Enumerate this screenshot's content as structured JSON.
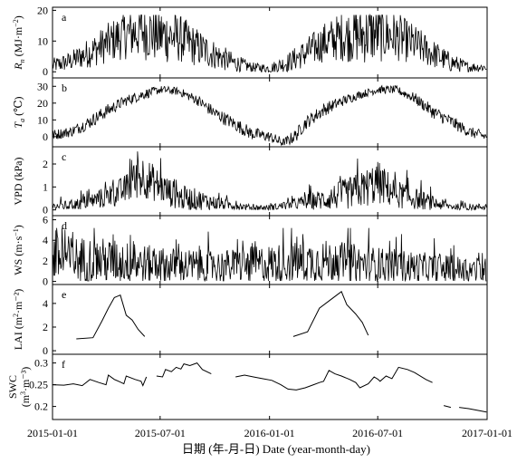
{
  "figure": {
    "xlabel": "日期 (年-月-日) Date (year-month-day)",
    "x_ticks": [
      "2015-01-01",
      "2015-07-01",
      "2016-01-01",
      "2016-07-01",
      "2017-01-01"
    ],
    "line_color": "#000000"
  },
  "chart_data": [
    {
      "type": "line",
      "panel_letter": "a",
      "ylabel": "Rn (MJ·m⁻²)",
      "ylabel_main": "R",
      "ylabel_sub": "n",
      "ylabel_rest": " (MJ·m",
      "ylabel_sup": "−2",
      "ylabel_end": ")",
      "ylim": [
        -2,
        21
      ],
      "yticks": [
        0,
        10,
        20
      ],
      "xlim": [
        "2015-01-01",
        "2017-01-01"
      ],
      "x": [
        "2015-01-01",
        "2015-02-01",
        "2015-03-01",
        "2015-04-01",
        "2015-05-01",
        "2015-06-01",
        "2015-07-01",
        "2015-08-01",
        "2015-09-01",
        "2015-10-01",
        "2015-11-01",
        "2015-12-01",
        "2016-01-01",
        "2016-02-01",
        "2016-03-01",
        "2016-04-01",
        "2016-05-01",
        "2016-06-01",
        "2016-07-01",
        "2016-08-01",
        "2016-09-01",
        "2016-10-01",
        "2016-11-01",
        "2016-12-01",
        "2016-12-31"
      ],
      "y": [
        2,
        3.5,
        6,
        9,
        12,
        13.5,
        12,
        11,
        8,
        5.5,
        3,
        1.5,
        1,
        3,
        6,
        9.5,
        11.5,
        12,
        12.5,
        11.5,
        9,
        6,
        3,
        1.5,
        1.5
      ],
      "amplitude": [
        1.5,
        2,
        3,
        4,
        5,
        6,
        6,
        5,
        4,
        3,
        2,
        1,
        1,
        2,
        3,
        4,
        5,
        6,
        6,
        5,
        4,
        3,
        2,
        1,
        1
      ],
      "clip": [
        0,
        18.5
      ]
    },
    {
      "type": "line",
      "panel_letter": "b",
      "ylabel": "Ta (℃)",
      "ylabel_main": "T",
      "ylabel_sub": "a",
      "ylabel_rest": " (℃)",
      "ylabel_sup": "",
      "ylabel_end": "",
      "ylim": [
        -6,
        35
      ],
      "yticks": [
        0,
        10,
        20,
        30
      ],
      "xlim": [
        "2015-01-01",
        "2017-01-01"
      ],
      "x": [
        "2015-01-01",
        "2015-02-01",
        "2015-03-01",
        "2015-04-01",
        "2015-05-01",
        "2015-06-01",
        "2015-07-01",
        "2015-08-01",
        "2015-09-01",
        "2015-10-01",
        "2015-11-01",
        "2015-12-01",
        "2016-01-01",
        "2016-01-25",
        "2016-02-15",
        "2016-03-01",
        "2016-04-01",
        "2016-05-01",
        "2016-06-01",
        "2016-07-01",
        "2016-08-01",
        "2016-09-01",
        "2016-10-01",
        "2016-11-01",
        "2016-12-01",
        "2016-12-31"
      ],
      "y": [
        1,
        3,
        8,
        15,
        21,
        25,
        28,
        27,
        22,
        14,
        8,
        2,
        0,
        -4,
        1,
        8,
        16,
        21,
        25,
        28,
        28,
        23,
        15,
        9,
        3,
        0
      ],
      "amplitude": [
        2,
        2,
        2.5,
        2.5,
        2,
        2,
        1.5,
        1.5,
        2,
        2.5,
        2.5,
        2.5,
        2,
        2,
        2.5,
        2.5,
        2.5,
        2,
        1.5,
        1.5,
        1.5,
        2,
        2.5,
        2.5,
        2,
        2
      ],
      "clip": [
        -5,
        32
      ]
    },
    {
      "type": "line",
      "panel_letter": "c",
      "ylabel": "VPD (kPa)",
      "ylabel_main": "VPD (kPa)",
      "ylabel_sub": "",
      "ylabel_rest": "",
      "ylabel_sup": "",
      "ylabel_end": "",
      "ylim": [
        -0.25,
        2.75
      ],
      "yticks": [
        0,
        1,
        2
      ],
      "xlim": [
        "2015-01-01",
        "2017-01-01"
      ],
      "x": [
        "2015-01-01",
        "2015-02-01",
        "2015-03-01",
        "2015-04-01",
        "2015-05-01",
        "2015-06-01",
        "2015-07-01",
        "2015-08-01",
        "2015-09-01",
        "2015-10-01",
        "2015-11-01",
        "2015-12-01",
        "2016-01-01",
        "2016-02-01",
        "2016-03-01",
        "2016-04-01",
        "2016-05-01",
        "2016-06-01",
        "2016-07-01",
        "2016-08-01",
        "2016-09-01",
        "2016-10-01",
        "2016-11-01",
        "2016-12-01",
        "2016-12-31"
      ],
      "y": [
        0.15,
        0.2,
        0.35,
        0.55,
        0.85,
        1.5,
        1.0,
        0.55,
        0.45,
        0.3,
        0.2,
        0.1,
        0.1,
        0.2,
        0.35,
        0.45,
        0.65,
        0.85,
        1.2,
        0.7,
        0.5,
        0.3,
        0.15,
        0.1,
        0.15
      ],
      "amplitude": [
        0.1,
        0.15,
        0.2,
        0.3,
        0.4,
        0.6,
        0.45,
        0.35,
        0.3,
        0.2,
        0.12,
        0.08,
        0.08,
        0.12,
        0.2,
        0.3,
        0.4,
        0.5,
        0.6,
        0.4,
        0.3,
        0.2,
        0.1,
        0.08,
        0.1
      ],
      "clip": [
        0,
        2.55
      ]
    },
    {
      "type": "line",
      "panel_letter": "d",
      "ylabel": "WS (m·s⁻¹)",
      "ylabel_main": "WS (m·s",
      "ylabel_sub": "",
      "ylabel_rest": "",
      "ylabel_sup": "−1",
      "ylabel_end": ")",
      "ylim": [
        -0.3,
        6.4
      ],
      "yticks": [
        0,
        2,
        4,
        6
      ],
      "xlim": [
        "2015-01-01",
        "2017-01-01"
      ],
      "x": [
        "2015-01-01",
        "2015-04-01",
        "2015-07-01",
        "2015-10-01",
        "2016-01-01",
        "2016-04-01",
        "2016-07-01",
        "2016-10-01",
        "2016-12-31"
      ],
      "y": [
        2.2,
        2.0,
        1.6,
        1.4,
        1.7,
        2.0,
        1.6,
        1.3,
        1.0
      ],
      "amplitude": [
        1.5,
        1.4,
        1.1,
        1.0,
        1.2,
        1.3,
        1.1,
        0.9,
        0.8
      ],
      "clip": [
        0.05,
        5.2
      ]
    },
    {
      "type": "line",
      "panel_letter": "e",
      "ylabel": "LAI (m²·m⁻²)",
      "ylabel_main": "LAI (m",
      "ylabel_sub": "",
      "ylabel_rest": "",
      "ylabel_sup": "2",
      "ylabel_end": "·m⁻²)",
      "ylim": [
        -0.3,
        5.6
      ],
      "yticks": [
        0,
        2,
        4
      ],
      "xlim": [
        "2015-01-01",
        "2017-01-01"
      ],
      "series": [
        {
          "x": [
            "2015-02-10",
            "2015-03-10",
            "2015-03-25",
            "2015-04-05",
            "2015-04-15",
            "2015-04-25",
            "2015-05-05",
            "2015-05-15",
            "2015-05-25",
            "2015-06-05"
          ],
          "y": [
            1.0,
            1.1,
            2.5,
            3.6,
            4.5,
            4.7,
            3.0,
            2.6,
            1.8,
            1.2
          ]
        },
        {
          "x": [
            "2016-02-10",
            "2016-03-05",
            "2016-03-25",
            "2016-04-15",
            "2016-05-01",
            "2016-05-10",
            "2016-05-25",
            "2016-06-05",
            "2016-06-15"
          ],
          "y": [
            1.2,
            1.6,
            3.6,
            4.4,
            5.0,
            3.9,
            3.1,
            2.4,
            1.3
          ]
        }
      ]
    },
    {
      "type": "line",
      "panel_letter": "f",
      "ylabel": "SWC (m³·m⁻³)",
      "ylabel_main": "SWC",
      "ylabel_sub": "",
      "ylabel_rest": "(m",
      "ylabel_sup": "3",
      "ylabel_end": "·m⁻³)",
      "ylim": [
        0.17,
        0.32
      ],
      "yticks": [
        0.2,
        0.25,
        0.3
      ],
      "xlim": [
        "2015-01-01",
        "2017-01-01"
      ],
      "series": [
        {
          "x": [
            "2015-01-01",
            "2015-01-20",
            "2015-02-05",
            "2015-02-20",
            "2015-03-05",
            "2015-03-20",
            "2015-04-01",
            "2015-04-05",
            "2015-04-15",
            "2015-04-25",
            "2015-05-01",
            "2015-05-05",
            "2015-05-20",
            "2015-05-30",
            "2015-06-02",
            "2015-06-08"
          ],
          "y": [
            0.25,
            0.249,
            0.252,
            0.248,
            0.262,
            0.255,
            0.25,
            0.272,
            0.262,
            0.256,
            0.252,
            0.27,
            0.262,
            0.258,
            0.248,
            0.268
          ]
        },
        {
          "x": [
            "2015-06-25",
            "2015-07-05",
            "2015-07-10",
            "2015-07-20",
            "2015-07-28",
            "2015-08-05",
            "2015-08-10",
            "2015-08-20",
            "2015-09-01",
            "2015-09-10",
            "2015-09-25"
          ],
          "y": [
            0.27,
            0.268,
            0.285,
            0.28,
            0.29,
            0.286,
            0.298,
            0.294,
            0.3,
            0.285,
            0.275
          ]
        },
        {
          "x": [
            "2015-11-05",
            "2015-11-20",
            "2015-12-05",
            "2015-12-20",
            "2016-01-05",
            "2016-01-20",
            "2016-02-01",
            "2016-02-15",
            "2016-03-01",
            "2016-03-15",
            "2016-03-25",
            "2016-04-01",
            "2016-04-10",
            "2016-04-20",
            "2016-05-01",
            "2016-05-15",
            "2016-05-25",
            "2016-06-01",
            "2016-06-15",
            "2016-06-25",
            "2016-07-01",
            "2016-07-05",
            "2016-07-15",
            "2016-07-25",
            "2016-08-05",
            "2016-08-20",
            "2016-09-01",
            "2016-09-20",
            "2016-10-01"
          ],
          "y": [
            0.268,
            0.272,
            0.268,
            0.264,
            0.26,
            0.25,
            0.24,
            0.238,
            0.243,
            0.25,
            0.255,
            0.258,
            0.283,
            0.275,
            0.27,
            0.262,
            0.255,
            0.243,
            0.252,
            0.268,
            0.263,
            0.258,
            0.27,
            0.264,
            0.29,
            0.285,
            0.278,
            0.262,
            0.255
          ]
        },
        {
          "x": [
            "2016-10-20",
            "2016-11-01"
          ],
          "y": [
            0.202,
            0.198
          ]
        },
        {
          "x": [
            "2016-11-15",
            "2016-12-01",
            "2016-12-20",
            "2016-12-31"
          ],
          "y": [
            0.198,
            0.195,
            0.19,
            0.187
          ]
        }
      ]
    }
  ]
}
